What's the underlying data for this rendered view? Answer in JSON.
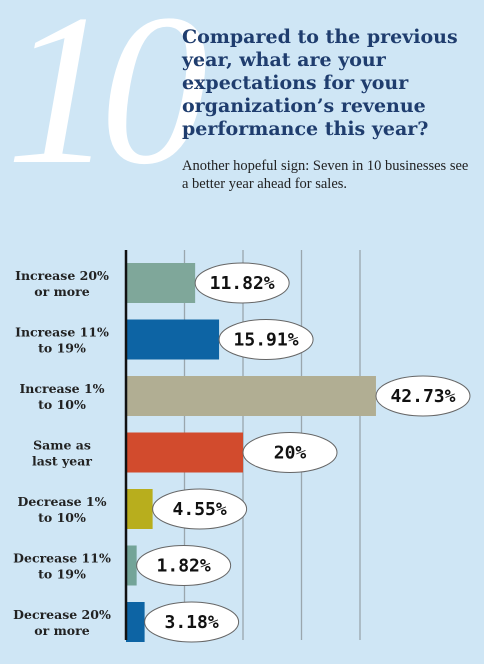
{
  "header": {
    "number": "10",
    "question": "Compared to the previous year, what are your expectations for your organization’s revenue performance this year?",
    "subtitle": "Another hopeful sign: Seven in 10 businesses see a better year ahead for sales."
  },
  "chart_data": {
    "type": "bar",
    "orientation": "horizontal",
    "categories": [
      [
        "Increase 20%",
        "or more"
      ],
      [
        "Increase 11%",
        "to 19%"
      ],
      [
        "Increase 1%",
        "to 10%"
      ],
      [
        "Same as",
        "last year"
      ],
      [
        "Decrease 1%",
        "to 10%"
      ],
      [
        "Decrease 11%",
        "to 19%"
      ],
      [
        "Decrease 20%",
        "or more"
      ]
    ],
    "values": [
      11.82,
      15.91,
      42.73,
      20,
      4.55,
      1.82,
      3.18
    ],
    "value_labels": [
      "11.82%",
      "15.91%",
      "42.73%",
      "20%",
      "4.55%",
      "1.82%",
      "3.18%"
    ],
    "colors": [
      "#7fa79a",
      "#0d64a4",
      "#b1ae93",
      "#d24b2d",
      "#b8ae1d",
      "#73a498",
      "#0d64a4"
    ],
    "xlim": [
      0,
      50
    ],
    "grid": true,
    "axis_color": "#111111",
    "grid_color": "#9aa6ad",
    "bubble_fill": "#ffffff"
  }
}
